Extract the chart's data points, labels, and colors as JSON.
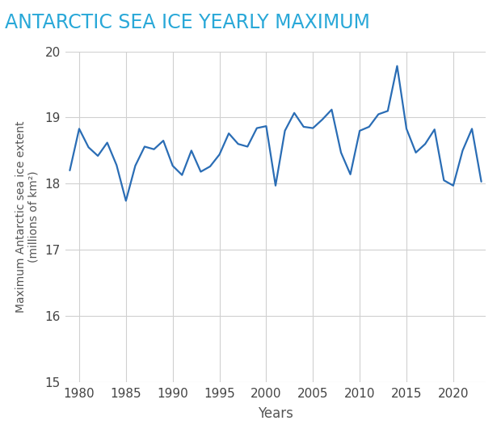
{
  "title": "ANTARCTIC SEA ICE YEARLY MAXIMUM",
  "xlabel": "Years",
  "ylabel": "Maximum Antarctic sea ice extent\n(millions of km²)",
  "line_color": "#2a6db5",
  "background_color": "#ffffff",
  "grid_color": "#d0d0d0",
  "title_color": "#29a8d8",
  "axis_label_color": "#555555",
  "tick_color": "#444444",
  "xlim": [
    1978.5,
    2023.5
  ],
  "ylim": [
    15,
    20
  ],
  "yticks": [
    15,
    16,
    17,
    18,
    19,
    20
  ],
  "xticks": [
    1980,
    1985,
    1990,
    1995,
    2000,
    2005,
    2010,
    2015,
    2020
  ],
  "years": [
    1979,
    1980,
    1981,
    1982,
    1983,
    1984,
    1985,
    1986,
    1987,
    1988,
    1989,
    1990,
    1991,
    1992,
    1993,
    1994,
    1995,
    1996,
    1997,
    1998,
    1999,
    2000,
    2001,
    2002,
    2003,
    2004,
    2005,
    2006,
    2007,
    2008,
    2009,
    2010,
    2011,
    2012,
    2013,
    2014,
    2015,
    2016,
    2017,
    2018,
    2019,
    2020,
    2021,
    2022,
    2023
  ],
  "values": [
    18.2,
    18.83,
    18.55,
    18.42,
    18.62,
    18.28,
    17.74,
    18.27,
    18.56,
    18.52,
    18.65,
    18.27,
    18.13,
    18.5,
    18.18,
    18.26,
    18.44,
    18.76,
    18.6,
    18.56,
    18.84,
    18.87,
    17.97,
    18.8,
    19.07,
    18.86,
    18.84,
    18.97,
    19.12,
    18.47,
    18.14,
    18.8,
    18.86,
    19.05,
    19.1,
    19.78,
    18.83,
    18.47,
    18.6,
    18.82,
    18.05,
    17.97,
    18.5,
    18.83,
    18.03
  ]
}
